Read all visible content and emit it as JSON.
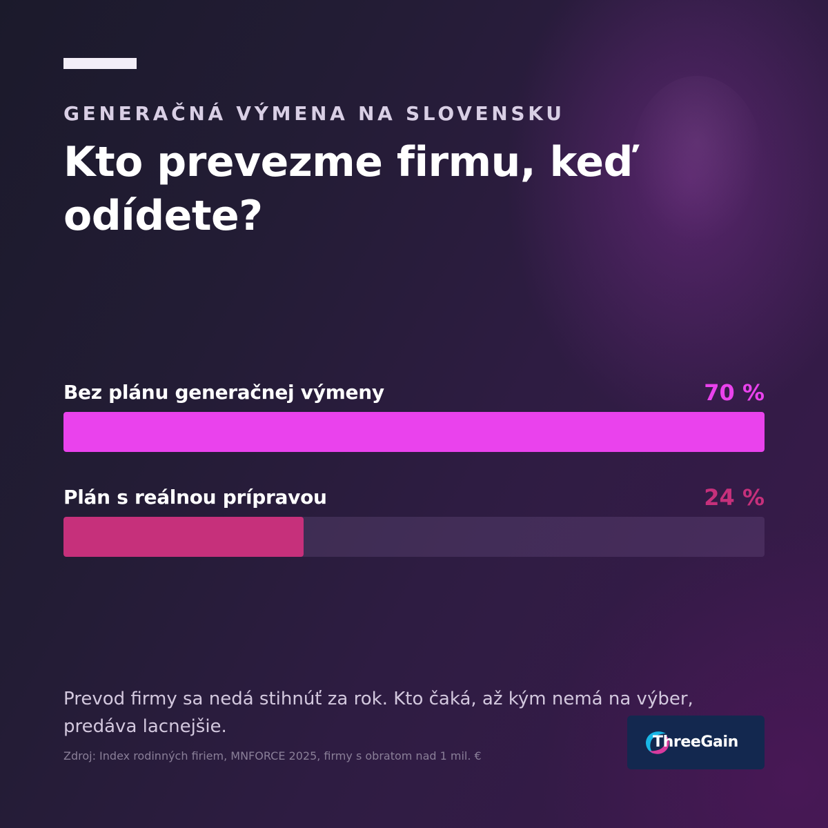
{
  "header": {
    "eyebrow": "GENERAČNÁ VÝMENA NA SLOVENSKU",
    "title": "Kto prevezme firmu, keď odídete?"
  },
  "chart_data": {
    "type": "bar",
    "orientation": "horizontal",
    "categories": [
      "Bez plánu generačnej výmeny",
      "Plán s reálnou prípravou"
    ],
    "values": [
      70,
      24
    ],
    "value_labels": [
      "70 %",
      "24 %"
    ],
    "unit": "%",
    "xlim": [
      0,
      70
    ],
    "bar_colors": [
      "#ea42ed",
      "#c6307b"
    ]
  },
  "footer": {
    "note": "Prevod firmy sa nedá stihnúť za rok. Kto čaká, až kým nemá na výber, predáva lacnejšie.",
    "source": "Zdroj: Index rodinných firiem, MNFORCE 2025, firmy s obratom nad 1 mil. €"
  },
  "logo": {
    "brand": "ThreeGain",
    "icon": "threegain-swirl-icon",
    "colors": [
      "#19b7e6",
      "#d93a9e"
    ]
  },
  "colors": {
    "accent_primary": "#ea42ed",
    "accent_secondary": "#c6307b",
    "logo_background": "#13284f"
  }
}
